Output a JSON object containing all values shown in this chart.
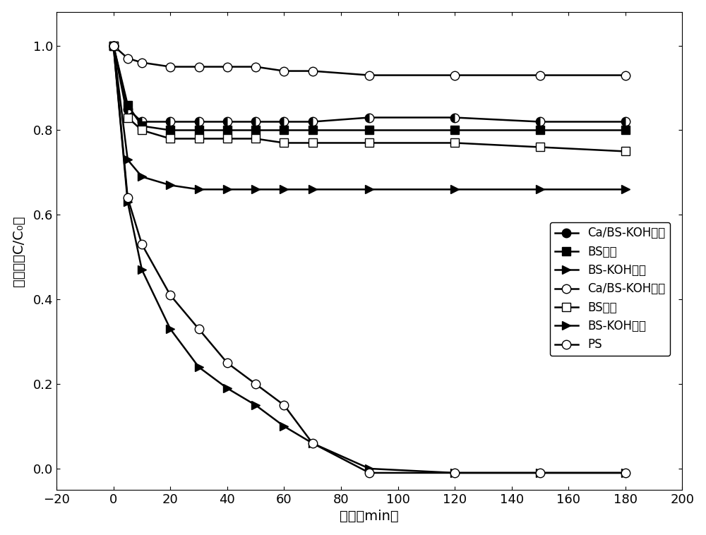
{
  "title": "",
  "xlabel": "时间（min）",
  "ylabel": "去除率（C/C₀）",
  "xlim": [
    -20,
    200
  ],
  "ylim": [
    -0.05,
    1.08
  ],
  "yticks": [
    0.0,
    0.2,
    0.4,
    0.6,
    0.8,
    1.0
  ],
  "xticks": [
    -20,
    0,
    20,
    40,
    60,
    80,
    100,
    120,
    140,
    160,
    180,
    200
  ],
  "series": [
    {
      "label": "Ca/BS-KOH吸附",
      "x": [
        0,
        5,
        10,
        20,
        30,
        40,
        50,
        60,
        70,
        90,
        120,
        150,
        180
      ],
      "y": [
        1.0,
        0.85,
        0.82,
        0.82,
        0.82,
        0.82,
        0.82,
        0.82,
        0.82,
        0.83,
        0.83,
        0.82,
        0.82
      ],
      "marker": "half_circle",
      "linestyle": "-",
      "color": "black"
    },
    {
      "label": "BS吸附",
      "x": [
        0,
        5,
        10,
        20,
        30,
        40,
        50,
        60,
        70,
        90,
        120,
        150,
        180
      ],
      "y": [
        1.0,
        0.86,
        0.81,
        0.8,
        0.8,
        0.8,
        0.8,
        0.8,
        0.8,
        0.8,
        0.8,
        0.8,
        0.8
      ],
      "marker": "s",
      "markerfacecolor": "black",
      "linestyle": "-",
      "color": "black"
    },
    {
      "label": "BS-KOH吸附",
      "x": [
        0,
        5,
        10,
        20,
        30,
        40,
        50,
        60,
        70,
        90,
        120,
        150,
        180
      ],
      "y": [
        1.0,
        0.73,
        0.69,
        0.67,
        0.66,
        0.66,
        0.66,
        0.66,
        0.66,
        0.66,
        0.66,
        0.66,
        0.66
      ],
      "marker": ">",
      "markerfacecolor": "black",
      "linestyle": "-",
      "color": "black"
    },
    {
      "label": "Ca/BS-KOH降解",
      "x": [
        0,
        5,
        10,
        20,
        30,
        40,
        50,
        60,
        70,
        90,
        120,
        150,
        180
      ],
      "y": [
        1.0,
        0.97,
        0.96,
        0.95,
        0.95,
        0.95,
        0.95,
        0.94,
        0.94,
        0.93,
        0.93,
        0.93,
        0.93
      ],
      "marker": "o",
      "markerfacecolor": "white",
      "linestyle": "-",
      "color": "black"
    },
    {
      "label": "BS降解",
      "x": [
        0,
        5,
        10,
        20,
        30,
        40,
        50,
        60,
        70,
        90,
        120,
        150,
        180
      ],
      "y": [
        1.0,
        0.83,
        0.8,
        0.78,
        0.78,
        0.78,
        0.78,
        0.77,
        0.77,
        0.77,
        0.77,
        0.76,
        0.75
      ],
      "marker": "s",
      "markerfacecolor": "white",
      "linestyle": "-",
      "color": "black"
    },
    {
      "label": "BS-KOH降解",
      "x": [
        0,
        5,
        10,
        20,
        30,
        40,
        50,
        60,
        70,
        90,
        120,
        150,
        180
      ],
      "y": [
        1.0,
        0.63,
        0.47,
        0.33,
        0.24,
        0.19,
        0.15,
        0.1,
        0.06,
        0.0,
        -0.01,
        -0.01,
        -0.01
      ],
      "marker": ">",
      "markerfacecolor": "black",
      "linestyle": "-",
      "color": "black"
    },
    {
      "label": "PS",
      "x": [
        0,
        5,
        10,
        20,
        30,
        40,
        50,
        60,
        70,
        90,
        120,
        150,
        180
      ],
      "y": [
        1.0,
        0.64,
        0.53,
        0.41,
        0.33,
        0.25,
        0.2,
        0.15,
        0.06,
        -0.01,
        -0.01,
        -0.01,
        -0.01
      ],
      "marker": "o",
      "markerfacecolor": "white",
      "linestyle": "-",
      "color": "black"
    }
  ],
  "font_size": 14,
  "tick_font_size": 13,
  "marker_size": 9,
  "linewidth": 1.8
}
